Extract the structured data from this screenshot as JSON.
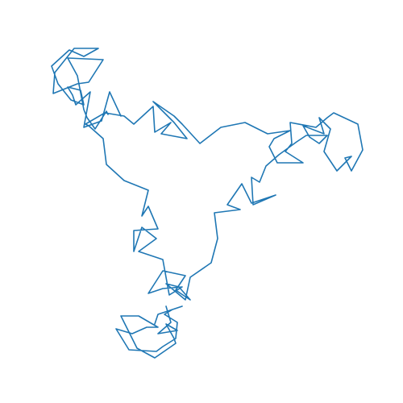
{
  "chart_data": {
    "type": "line",
    "title": "",
    "xlabel": "",
    "ylabel": "",
    "axes_visible": false,
    "grid": false,
    "series": [
      {
        "color": "#1f77b4",
        "points": [
          [
            248,
            178
          ],
          [
            274,
            158
          ],
          [
            304,
            152
          ],
          [
            332,
            166
          ],
          [
            360,
            162
          ],
          [
            340,
            172
          ],
          [
            334,
            182
          ],
          [
            344,
            202
          ],
          [
            376,
            202
          ],
          [
            354,
            188
          ],
          [
            362,
            178
          ],
          [
            360,
            152
          ],
          [
            392,
            158
          ],
          [
            406,
            146
          ],
          [
            414,
            140
          ],
          [
            444,
            154
          ],
          [
            450,
            186
          ],
          [
            436,
            212
          ],
          [
            428,
            196
          ],
          [
            436,
            194
          ],
          [
            418,
            212
          ],
          [
            402,
            188
          ],
          [
            410,
            160
          ],
          [
            396,
            146
          ],
          [
            402,
            166
          ],
          [
            376,
            156
          ],
          [
            384,
            170
          ],
          [
            396,
            178
          ],
          [
            406,
            168
          ],
          [
            380,
            168
          ],
          [
            368,
            176
          ],
          [
            346,
            192
          ],
          [
            330,
            206
          ],
          [
            322,
            226
          ],
          [
            312,
            220
          ],
          [
            314,
            254
          ],
          [
            342,
            242
          ],
          [
            312,
            252
          ],
          [
            300,
            228
          ],
          [
            282,
            254
          ],
          [
            298,
            260
          ],
          [
            266,
            264
          ],
          [
            270,
            296
          ],
          [
            262,
            326
          ],
          [
            236,
            344
          ],
          [
            230,
            372
          ],
          [
            206,
            352
          ],
          [
            222,
            356
          ],
          [
            236,
            372
          ],
          [
            218,
            360
          ],
          [
            230,
            342
          ],
          [
            202,
            336
          ],
          [
            184,
            364
          ],
          [
            202,
            358
          ],
          [
            226,
            356
          ],
          [
            210,
            366
          ],
          [
            202,
            322
          ],
          [
            172,
            312
          ],
          [
            194,
            296
          ],
          [
            176,
            282
          ],
          [
            166,
            312
          ],
          [
            166,
            286
          ],
          [
            196,
            284
          ],
          [
            184,
            256
          ],
          [
            176,
            268
          ],
          [
            184,
            236
          ],
          [
            154,
            224
          ],
          [
            132,
            204
          ],
          [
            128,
            172
          ],
          [
            110,
            156
          ],
          [
            106,
            154
          ],
          [
            130,
            140
          ],
          [
            154,
            144
          ],
          [
            166,
            154
          ],
          [
            190,
            132
          ],
          [
            192,
            164
          ],
          [
            212,
            152
          ],
          [
            200,
            166
          ],
          [
            232,
            172
          ],
          [
            216,
            152
          ],
          [
            206,
            142
          ],
          [
            190,
            126
          ],
          [
            216,
            144
          ],
          [
            226,
            154
          ],
          [
            248,
            178
          ]
        ]
      },
      {
        "color": "#1f77b4",
        "points": [
          [
            150,
            144
          ],
          [
            136,
            114
          ],
          [
            126,
            150
          ],
          [
            104,
            158
          ],
          [
            112,
            114
          ],
          [
            94,
            130
          ],
          [
            90,
            118
          ],
          [
            84,
            108
          ],
          [
            100,
            112
          ],
          [
            104,
            130
          ],
          [
            88,
            124
          ],
          [
            72,
            104
          ],
          [
            64,
            82
          ],
          [
            86,
            62
          ],
          [
            104,
            70
          ],
          [
            122,
            60
          ],
          [
            92,
            60
          ],
          [
            68,
            90
          ],
          [
            66,
            116
          ],
          [
            96,
            104
          ],
          [
            110,
            102
          ],
          [
            128,
            74
          ],
          [
            84,
            72
          ],
          [
            96,
            94
          ],
          [
            104,
            136
          ],
          [
            108,
            146
          ],
          [
            118,
            160
          ],
          [
            132,
            138
          ],
          [
            134,
            142
          ]
        ]
      },
      {
        "color": "#1f77b4",
        "points": [
          [
            206,
            380
          ],
          [
            212,
            400
          ],
          [
            196,
            414
          ],
          [
            220,
            410
          ],
          [
            206,
            402
          ],
          [
            216,
            420
          ],
          [
            218,
            426
          ],
          [
            192,
            444
          ],
          [
            170,
            432
          ],
          [
            150,
            392
          ],
          [
            172,
            392
          ],
          [
            196,
            406
          ],
          [
            182,
            406
          ],
          [
            164,
            414
          ],
          [
            144,
            408
          ],
          [
            160,
            434
          ],
          [
            194,
            436
          ],
          [
            202,
            430
          ],
          [
            218,
            420
          ],
          [
            220,
            400
          ],
          [
            204,
            390
          ],
          [
            214,
            384
          ],
          [
            226,
            380
          ],
          [
            196,
            390
          ],
          [
            192,
            402
          ]
        ]
      }
    ]
  }
}
